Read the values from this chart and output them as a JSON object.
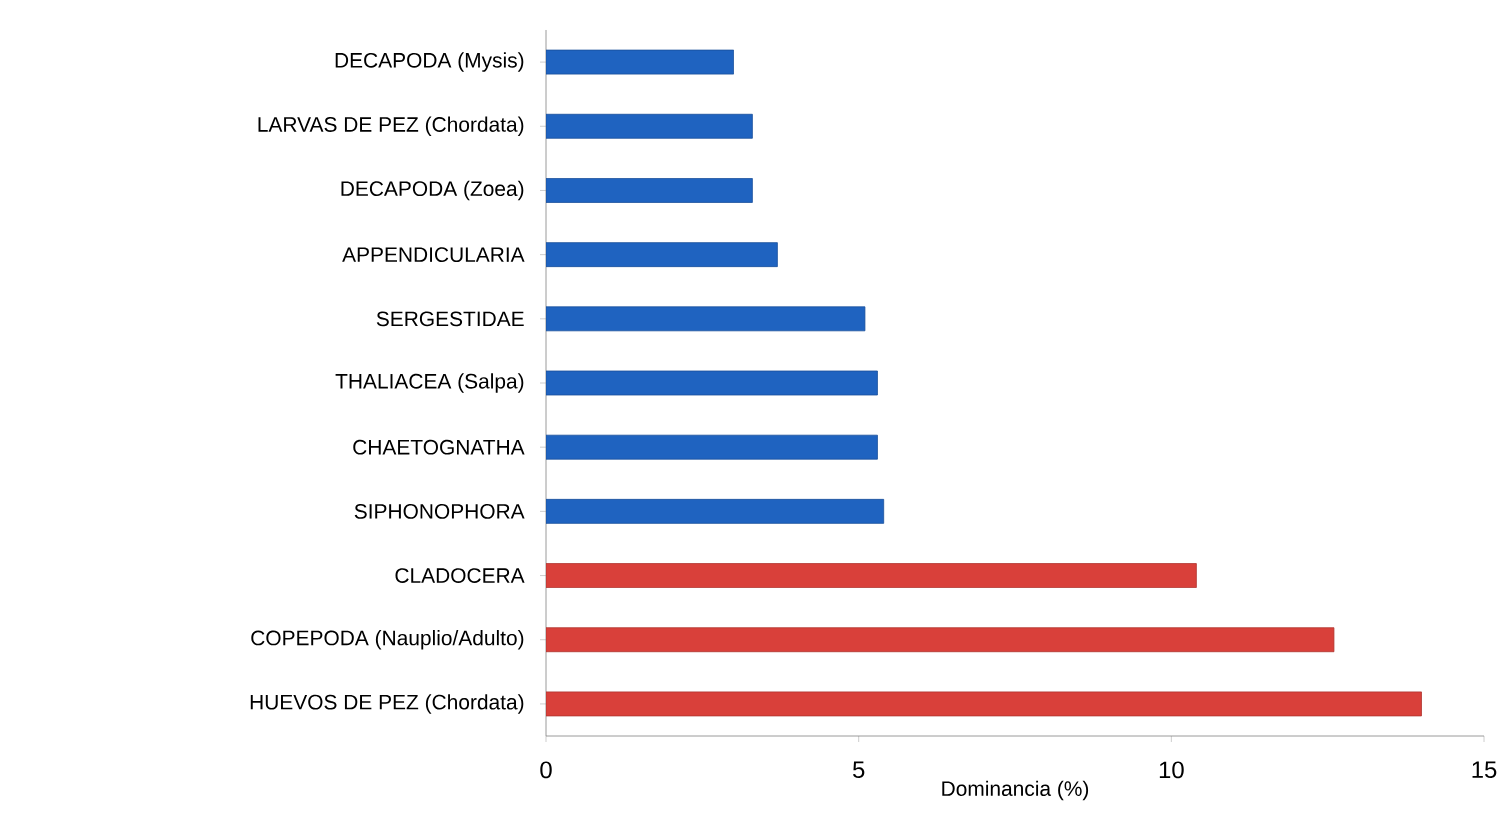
{
  "chart_data": {
    "type": "bar",
    "orientation": "horizontal",
    "xlabel": "Dominancia (%)",
    "categories": [
      "DECAPODA (Mysis)",
      "LARVAS DE PEZ (Chordata)",
      "DECAPODA (Zoea)",
      "APPENDICULARIA",
      "SERGESTIDAE",
      "THALIACEA (Salpa)",
      "CHAETOGNATHA",
      "SIPHONOPHORA",
      "CLADOCERA",
      "COPEPODA (Nauplio/Adulto)",
      "HUEVOS DE PEZ (Chordata)"
    ],
    "values": [
      3.0,
      3.3,
      3.3,
      3.7,
      5.1,
      5.3,
      5.3,
      5.4,
      10.4,
      12.6,
      14.0
    ],
    "colors": [
      "#1f63c0",
      "#1f63c0",
      "#1f63c0",
      "#1f63c0",
      "#1f63c0",
      "#1f63c0",
      "#1f63c0",
      "#1f63c0",
      "#d9403a",
      "#d9403a",
      "#d9403a"
    ],
    "xlim": [
      0,
      15
    ],
    "xticks": [
      0,
      5,
      10,
      15
    ]
  }
}
